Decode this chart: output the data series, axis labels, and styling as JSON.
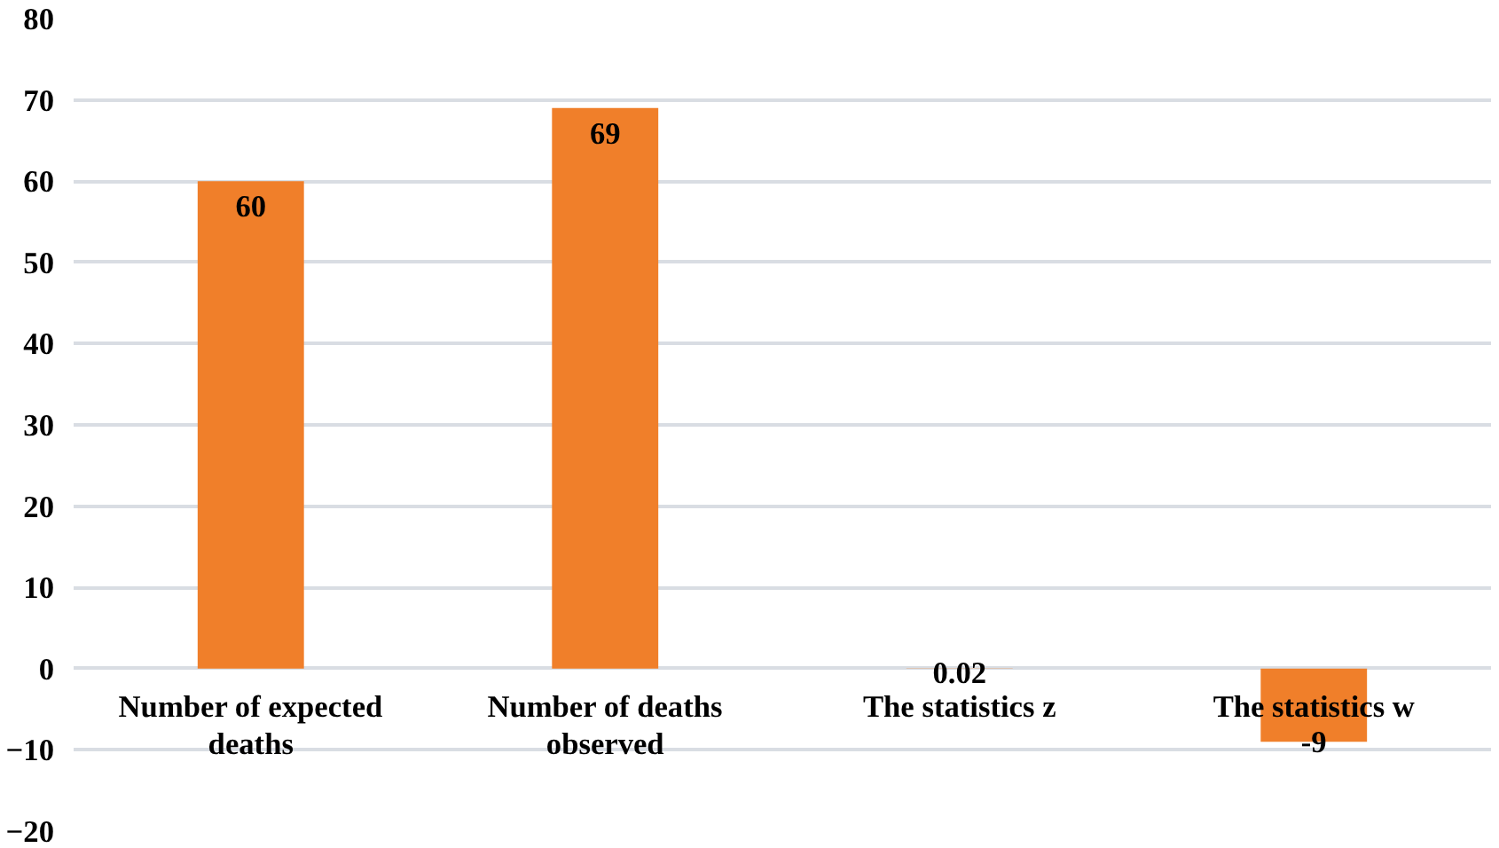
{
  "chart_data": {
    "type": "bar",
    "categories": [
      "Number of expected deaths",
      "Number of deaths observed",
      "The statistics z",
      "The statistics w"
    ],
    "values": [
      60,
      69,
      0.02,
      -9
    ],
    "color": "#f07f2a",
    "ylim": [
      -20,
      80
    ],
    "yticks": [
      -20,
      -10,
      0,
      10,
      20,
      30,
      40,
      50,
      60,
      70,
      80
    ],
    "grid": "y",
    "data_labels": true
  }
}
